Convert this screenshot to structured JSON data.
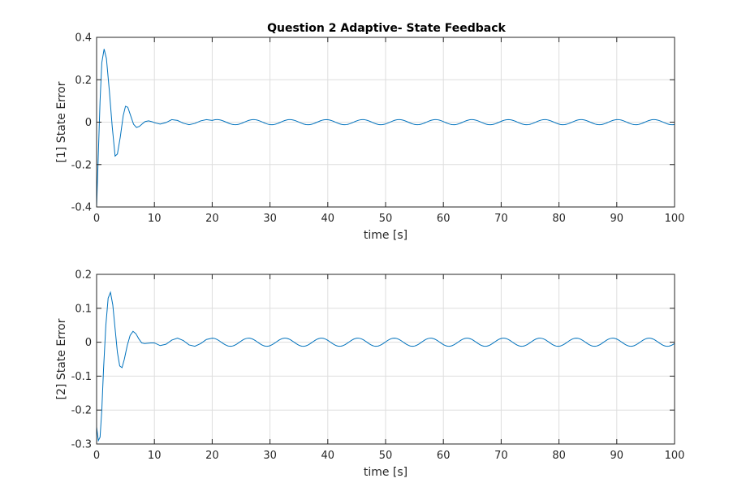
{
  "title": "Question 2 Adaptive- State Feedback",
  "colors": {
    "series": "#0072BD",
    "grid": "#dedede",
    "axes": "#262626"
  },
  "chart_data": [
    {
      "type": "line",
      "title": "Question 2 Adaptive- State Feedback",
      "xlabel": "time [s]",
      "ylabel": "[1] State Error",
      "xlim": [
        0,
        100
      ],
      "ylim": [
        -0.4,
        0.4
      ],
      "xticks": [
        0,
        10,
        20,
        30,
        40,
        50,
        60,
        70,
        80,
        90,
        100
      ],
      "yticks": [
        -0.4,
        -0.2,
        0,
        0.2,
        0.4
      ],
      "grid": true,
      "series": [
        {
          "x": [
            0,
            0.3,
            0.6,
            0.9,
            1.3,
            1.7,
            2.2,
            2.7,
            3.2,
            3.6,
            4.1,
            4.6,
            5.0,
            5.4,
            5.9,
            6.4,
            6.9,
            7.4,
            7.9,
            8.4,
            9.0,
            9.6,
            10.2,
            11.0,
            12.0,
            13.0,
            14.0,
            15.0,
            16.0,
            17.0,
            18.0,
            19.0,
            20.0
          ],
          "y": [
            -0.4,
            -0.15,
            0.1,
            0.28,
            0.345,
            0.3,
            0.15,
            -0.02,
            -0.16,
            -0.15,
            -0.07,
            0.03,
            0.075,
            0.07,
            0.03,
            -0.01,
            -0.025,
            -0.02,
            -0.008,
            0.003,
            0.006,
            0.002,
            -0.004,
            -0.009,
            -0.002,
            0.012,
            0.008,
            -0.005,
            -0.012,
            -0.006,
            0.006,
            0.012,
            0.008
          ]
        }
      ],
      "steady_oscillation": {
        "from": 20,
        "to": 100,
        "amplitude": 0.012,
        "period": 6.3
      }
    },
    {
      "type": "line",
      "xlabel": "time [s]",
      "ylabel": "[2] State Error",
      "xlim": [
        0,
        100
      ],
      "ylim": [
        -0.3,
        0.2
      ],
      "xticks": [
        0,
        10,
        20,
        30,
        40,
        50,
        60,
        70,
        80,
        90,
        100
      ],
      "yticks": [
        -0.3,
        -0.2,
        -0.1,
        0,
        0.1,
        0.2
      ],
      "grid": true,
      "series": [
        {
          "x": [
            0,
            0.3,
            0.6,
            0.9,
            1.2,
            1.6,
            2.0,
            2.4,
            2.8,
            3.2,
            3.6,
            4.0,
            4.4,
            4.8,
            5.3,
            5.8,
            6.3,
            6.8,
            7.3,
            7.8,
            8.3,
            8.8,
            9.4,
            10.0,
            11.0,
            12.0,
            13.0,
            14.0,
            15.0,
            16.0,
            17.0,
            18.0,
            19.0,
            20.0
          ],
          "y": [
            -0.25,
            -0.29,
            -0.28,
            -0.2,
            -0.08,
            0.05,
            0.13,
            0.147,
            0.11,
            0.04,
            -0.03,
            -0.07,
            -0.075,
            -0.05,
            -0.01,
            0.02,
            0.032,
            0.025,
            0.01,
            -0.002,
            -0.004,
            -0.003,
            -0.002,
            -0.002,
            -0.01,
            -0.006,
            0.006,
            0.012,
            0.005,
            -0.008,
            -0.012,
            -0.004,
            0.008,
            0.012
          ]
        }
      ],
      "steady_oscillation": {
        "from": 20,
        "to": 100,
        "amplitude": 0.012,
        "period": 6.3
      }
    }
  ]
}
